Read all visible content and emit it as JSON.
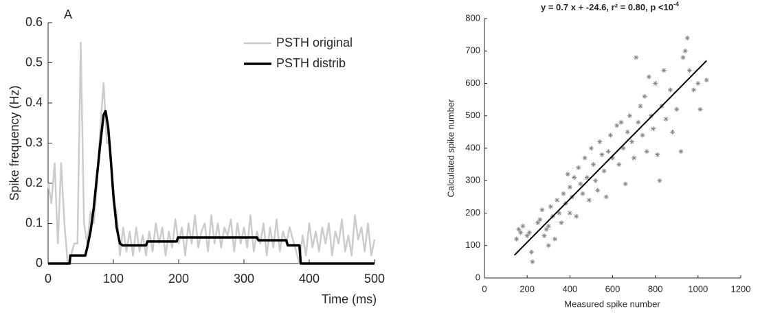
{
  "chart_data": [
    {
      "type": "line",
      "panel_label": "A",
      "xlabel": "Time (ms)",
      "ylabel": "Spike frequency (Hz)",
      "xlim": [
        0,
        500
      ],
      "ylim": [
        0,
        0.6
      ],
      "xticks": [
        0,
        100,
        200,
        300,
        400,
        500
      ],
      "yticks": [
        0,
        0.1,
        0.2,
        0.3,
        0.4,
        0.5,
        0.6
      ],
      "legend": "upper right",
      "series": [
        {
          "name": "PSTH original",
          "color": "#cccccc",
          "width": 2.5,
          "x": [
            0,
            5,
            10,
            15,
            20,
            25,
            30,
            35,
            40,
            45,
            50,
            55,
            60,
            65,
            70,
            75,
            80,
            85,
            90,
            95,
            100,
            105,
            110,
            115,
            120,
            125,
            130,
            135,
            140,
            145,
            150,
            155,
            160,
            165,
            170,
            175,
            180,
            185,
            190,
            195,
            200,
            205,
            210,
            215,
            220,
            225,
            230,
            235,
            240,
            245,
            250,
            255,
            260,
            265,
            270,
            275,
            280,
            285,
            290,
            295,
            300,
            305,
            310,
            315,
            320,
            325,
            330,
            335,
            340,
            345,
            350,
            355,
            360,
            365,
            370,
            375,
            380,
            385,
            390,
            395,
            400,
            405,
            410,
            415,
            420,
            425,
            430,
            435,
            440,
            445,
            450,
            455,
            460,
            465,
            470,
            475,
            480,
            485,
            490,
            495,
            500
          ],
          "values": [
            0.2,
            0.15,
            0.25,
            0.05,
            0.25,
            0.1,
            0,
            0.02,
            0.05,
            0.05,
            0.55,
            0.1,
            0.05,
            0.13,
            0.1,
            0.2,
            0.34,
            0.45,
            0.3,
            0.3,
            0.15,
            0.13,
            0.02,
            0.09,
            0.03,
            0.08,
            0.02,
            0.09,
            0.03,
            0.07,
            0.02,
            0.08,
            0.03,
            0.1,
            0.05,
            0.09,
            0.02,
            0.08,
            0.04,
            0.11,
            0.05,
            0.09,
            0.02,
            0.1,
            0.05,
            0.12,
            0.04,
            0.08,
            0.1,
            0.03,
            0.12,
            0.05,
            0.1,
            0.04,
            0.09,
            0.07,
            0.11,
            0.03,
            0.1,
            0.05,
            0.09,
            0.04,
            0.12,
            0.03,
            0.08,
            0.05,
            0.1,
            0.02,
            0.09,
            0.04,
            0.11,
            0.03,
            0.08,
            0.05,
            0.09,
            0.06,
            0.03,
            0,
            0.07,
            0.02,
            0.1,
            0.04,
            0.08,
            0.03,
            0.09,
            0.05,
            0.1,
            0.02,
            0.08,
            0.05,
            0.11,
            0.03,
            0.07,
            0.02,
            0.12,
            0.06,
            0.09,
            0.03,
            0.1,
            0.02,
            0.06
          ]
        },
        {
          "name": "PSTH distrib",
          "color": "#000000",
          "width": 3.5,
          "x": [
            0,
            33,
            34,
            57,
            60,
            65,
            70,
            75,
            80,
            85,
            88,
            92,
            96,
            100,
            105,
            110,
            114,
            150,
            152,
            197,
            199,
            320,
            322,
            365,
            367,
            385,
            387,
            500
          ],
          "values": [
            0,
            0,
            0.02,
            0.02,
            0.04,
            0.08,
            0.14,
            0.22,
            0.3,
            0.37,
            0.38,
            0.34,
            0.26,
            0.17,
            0.09,
            0.05,
            0.045,
            0.045,
            0.055,
            0.055,
            0.065,
            0.065,
            0.058,
            0.058,
            0.045,
            0.045,
            0,
            0
          ]
        }
      ]
    },
    {
      "type": "scatter",
      "title": "y = 0.7 x + -24.6, r² = 0.80, p <10",
      "title_exponent": "-4",
      "xlabel": "Measured spike number",
      "ylabel": "Calculated spike number",
      "xlim": [
        0,
        1200
      ],
      "ylim": [
        0,
        800
      ],
      "xticks": [
        0,
        200,
        400,
        600,
        800,
        1000,
        1200
      ],
      "yticks": [
        0,
        100,
        200,
        300,
        400,
        500,
        600,
        700,
        800
      ],
      "series": [
        {
          "color": "#888888",
          "x": [
            150,
            160,
            170,
            180,
            200,
            210,
            220,
            225,
            250,
            260,
            270,
            280,
            290,
            300,
            300,
            310,
            320,
            330,
            340,
            350,
            360,
            370,
            380,
            390,
            400,
            400,
            410,
            420,
            430,
            440,
            450,
            460,
            470,
            480,
            490,
            500,
            510,
            520,
            530,
            540,
            550,
            560,
            570,
            580,
            590,
            600,
            620,
            630,
            640,
            650,
            660,
            670,
            680,
            690,
            700,
            710,
            720,
            730,
            740,
            750,
            760,
            770,
            780,
            790,
            800,
            810,
            820,
            830,
            840,
            850,
            870,
            880,
            900,
            920,
            930,
            940,
            950,
            960,
            980,
            1000,
            1010,
            1040
          ],
          "values": [
            120,
            150,
            140,
            160,
            130,
            140,
            80,
            50,
            170,
            180,
            210,
            130,
            150,
            160,
            100,
            220,
            190,
            120,
            240,
            200,
            170,
            260,
            230,
            320,
            280,
            200,
            250,
            310,
            190,
            340,
            290,
            260,
            370,
            310,
            240,
            400,
            350,
            300,
            270,
            420,
            380,
            330,
            250,
            390,
            440,
            370,
            470,
            350,
            480,
            400,
            290,
            450,
            500,
            420,
            370,
            680,
            480,
            530,
            440,
            560,
            390,
            620,
            500,
            460,
            600,
            380,
            300,
            530,
            640,
            490,
            580,
            450,
            520,
            390,
            680,
            700,
            740,
            640,
            580,
            600,
            520,
            610
          ]
        }
      ],
      "fit": {
        "color": "#000000",
        "x": [
          140,
          1040
        ],
        "y": [
          70,
          670
        ]
      }
    }
  ]
}
